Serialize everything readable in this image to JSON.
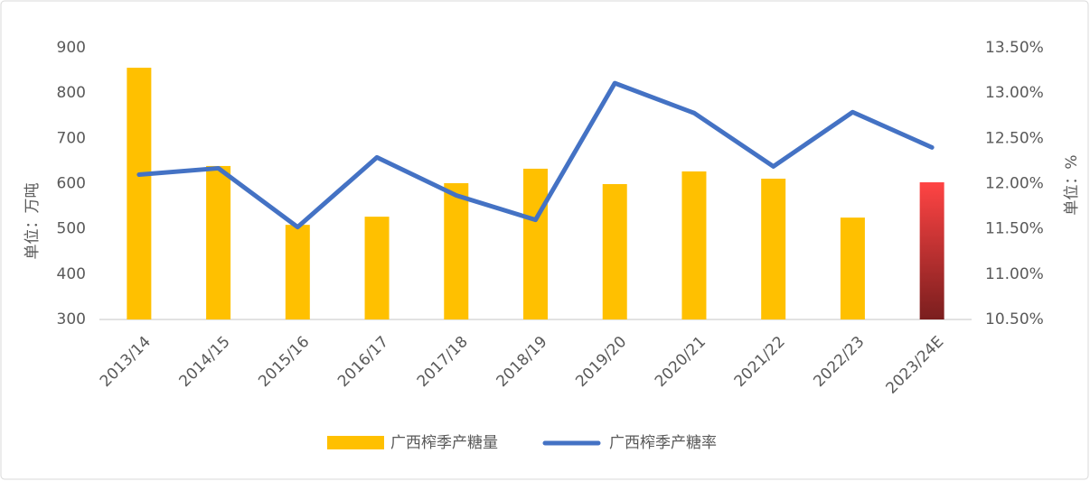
{
  "chart_data": {
    "type": "bar_line",
    "categories": [
      "2013/14",
      "2014/15",
      "2015/16",
      "2016/17",
      "2017/18",
      "2018/19",
      "2019/20",
      "2020/21",
      "2021/22",
      "2022/23",
      "2023/24E"
    ],
    "series": [
      {
        "name": "广西榨季产糖量",
        "type": "bar",
        "color": "#FFC000",
        "values": [
          856,
          639,
          509,
          527,
          601,
          633,
          599,
          627,
          611,
          525,
          603
        ],
        "highlight": {
          "index": 10,
          "colors": [
            "#FF4444",
            "#7A1E1E"
          ]
        }
      },
      {
        "name": "广西榨季产糖率",
        "type": "line",
        "axis": "y2",
        "color": "#4472C4",
        "values": [
          12.1,
          12.17,
          11.52,
          12.29,
          11.87,
          11.6,
          13.11,
          12.78,
          12.19,
          12.79,
          12.4
        ]
      }
    ],
    "ylabel": "单位：万吨",
    "y2label": "单位：%",
    "ylim": [
      300,
      900
    ],
    "yticks": [
      300,
      400,
      500,
      600,
      700,
      800,
      900
    ],
    "y2lim": [
      10.5,
      13.5
    ],
    "y2ticks": [
      {
        "value": 10.5,
        "label": "10.50%"
      },
      {
        "value": 11,
        "label": "11.00%"
      },
      {
        "value": 11.5,
        "label": "11.50%"
      },
      {
        "value": 12,
        "label": "12.00%"
      },
      {
        "value": 12.5,
        "label": "12.50%"
      },
      {
        "value": 13,
        "label": "13.00%"
      },
      {
        "value": 13.5,
        "label": "13.50%"
      }
    ],
    "legend": "bottom",
    "grid": false
  }
}
